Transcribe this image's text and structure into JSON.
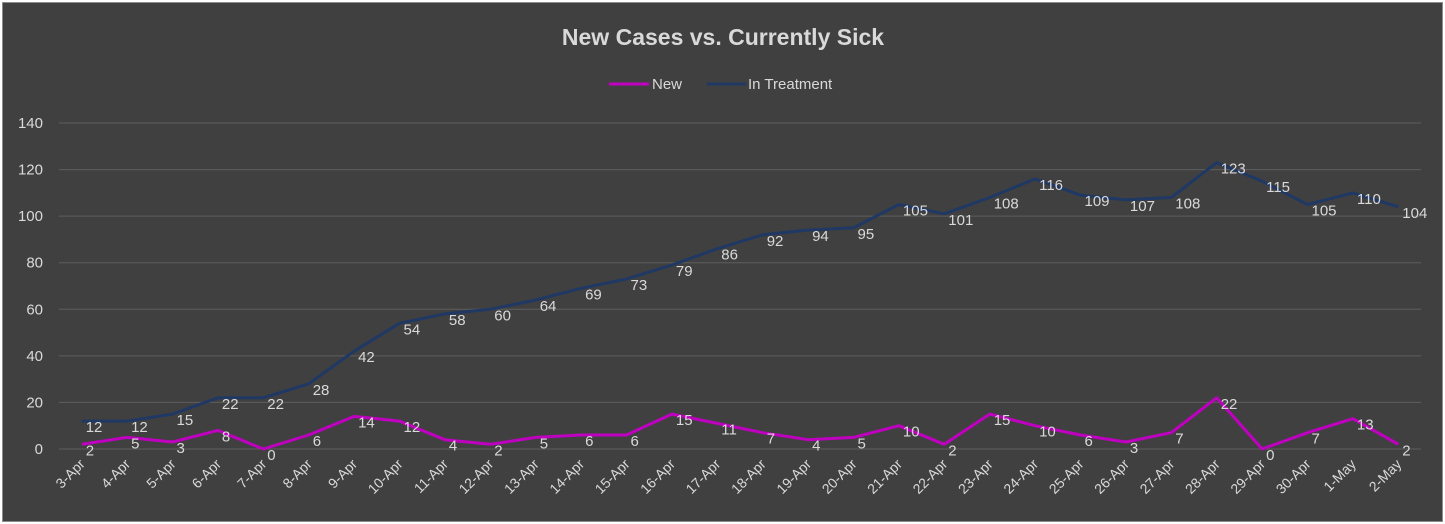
{
  "chart_data": {
    "type": "line",
    "title": "New Cases vs. Currently Sick",
    "legend_position": "top",
    "grid": true,
    "ylim": [
      0,
      140
    ],
    "yticks": [
      0,
      20,
      40,
      60,
      80,
      100,
      120,
      140
    ],
    "categories": [
      "3-Apr",
      "4-Apr",
      "5-Apr",
      "6-Apr",
      "7-Apr",
      "8-Apr",
      "9-Apr",
      "10-Apr",
      "11-Apr",
      "12-Apr",
      "13-Apr",
      "14-Apr",
      "15-Apr",
      "16-Apr",
      "17-Apr",
      "18-Apr",
      "19-Apr",
      "20-Apr",
      "21-Apr",
      "22-Apr",
      "23-Apr",
      "24-Apr",
      "25-Apr",
      "26-Apr",
      "27-Apr",
      "28-Apr",
      "29-Apr",
      "30-Apr",
      "1-May",
      "2-May"
    ],
    "series": [
      {
        "name": "New",
        "color": "#c000c0",
        "values": [
          2,
          5,
          3,
          8,
          0,
          6,
          14,
          12,
          4,
          2,
          5,
          6,
          6,
          15,
          11,
          7,
          4,
          5,
          10,
          2,
          15,
          10,
          6,
          3,
          7,
          22,
          0,
          7,
          13,
          2
        ]
      },
      {
        "name": "In Treatment",
        "color": "#1f3864",
        "values": [
          12,
          12,
          15,
          22,
          22,
          28,
          42,
          54,
          58,
          60,
          64,
          69,
          73,
          79,
          86,
          92,
          94,
          95,
          105,
          101,
          108,
          116,
          109,
          107,
          108,
          123,
          115,
          105,
          110,
          104
        ]
      }
    ]
  }
}
